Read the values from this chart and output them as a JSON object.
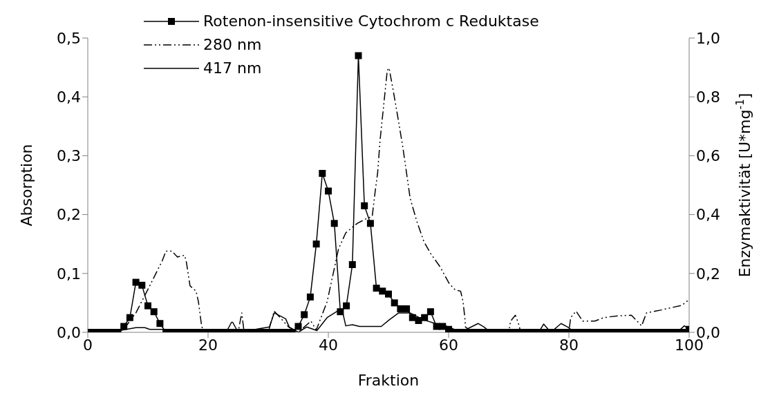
{
  "chart_data": {
    "type": "line",
    "xlabel": "Fraktion",
    "ylabel": "Absorption",
    "y2label": "Enzymaktivität [U*mg$^{-1}$]",
    "xlim": [
      0,
      100
    ],
    "xticks": [
      0,
      20,
      40,
      60,
      80,
      100
    ],
    "ylim": [
      0,
      0.5
    ],
    "yticks": [
      {
        "value": 0,
        "label": "0,0"
      },
      {
        "value": 0.1,
        "label": "0,1"
      },
      {
        "value": 0.2,
        "label": "0,2"
      },
      {
        "value": 0.3,
        "label": "0,3"
      },
      {
        "value": 0.4,
        "label": "0,4"
      },
      {
        "value": 0.5,
        "label": "0,5"
      }
    ],
    "y2lim": [
      0,
      1
    ],
    "y2ticks": [
      {
        "value": 0,
        "label": "0,0"
      },
      {
        "value": 0.2,
        "label": "0,2"
      },
      {
        "value": 0.4,
        "label": "0,4"
      },
      {
        "value": 0.6,
        "label": "0,6"
      },
      {
        "value": 0.8,
        "label": "0,8"
      },
      {
        "value": 1,
        "label": "1,0"
      }
    ],
    "legend": "top left",
    "grid": false,
    "series": [
      {
        "name": "Rotenon-insensitive Cytochrom c Reduktase",
        "color": "#000000",
        "axis": "y2",
        "marker": "square",
        "line_style": "solid",
        "x": [
          0,
          1,
          2,
          3,
          4,
          5,
          6,
          7,
          8,
          9,
          10,
          11,
          12,
          13,
          14,
          15,
          16,
          17,
          18,
          19,
          20,
          21,
          22,
          23,
          24,
          25,
          26,
          27,
          28,
          29,
          30,
          31,
          32,
          33,
          34,
          35,
          36,
          37,
          38,
          39,
          40,
          41,
          42,
          43,
          44,
          45,
          46,
          47,
          48,
          49,
          50,
          51,
          52,
          53,
          54,
          55,
          56,
          57,
          58,
          59,
          60,
          61,
          62,
          63,
          64,
          65,
          66,
          67,
          68,
          69,
          70,
          71,
          72,
          73,
          74,
          75,
          76,
          77,
          78,
          79,
          80,
          81,
          82,
          83,
          84,
          85,
          86,
          87,
          88,
          89,
          90,
          91,
          92,
          93,
          94,
          95,
          96,
          97,
          98,
          99,
          100
        ],
        "values": [
          0,
          0,
          0,
          0,
          0,
          0,
          0.02,
          0.05,
          0.17,
          0.16,
          0.09,
          0.07,
          0.03,
          0,
          0,
          0,
          0,
          0,
          0,
          0,
          0,
          0,
          0,
          0,
          0,
          0,
          0,
          0,
          0,
          0,
          0,
          0,
          0,
          0,
          0,
          0.02,
          0.06,
          0.12,
          0.3,
          0.54,
          0.48,
          0.37,
          0.07,
          0.09,
          0.23,
          0.94,
          0.43,
          0.37,
          0.15,
          0.14,
          0.13,
          0.1,
          0.08,
          0.08,
          0.05,
          0.04,
          0.05,
          0.07,
          0.02,
          0.02,
          0.01,
          0,
          0,
          0,
          0,
          0,
          0,
          0,
          0,
          0,
          0,
          0,
          0,
          0,
          0,
          0,
          0,
          0,
          0,
          0,
          0,
          0,
          0,
          0,
          0,
          0,
          0,
          0,
          0,
          0,
          0,
          0,
          0,
          0,
          0,
          0,
          0,
          0,
          0,
          0,
          0.01
        ]
      },
      {
        "name": "280 nm",
        "color": "#000000",
        "marker": "none",
        "line_style": "dashed",
        "x": [
          0,
          1,
          2,
          3,
          4,
          5.9,
          8,
          10.3,
          12.4,
          13,
          14,
          14.9,
          16.1,
          16.4,
          17,
          18,
          18.4,
          18.9,
          19.1,
          20,
          25,
          25.6,
          26,
          30,
          31,
          33.4,
          35,
          37.1,
          38,
          39.8,
          41.7,
          42.9,
          44.8,
          46.3,
          47.3,
          47.8,
          48.2,
          48.6,
          49.2,
          49.8,
          50.1,
          50.7,
          51.5,
          52.4,
          53.6,
          54.7,
          55.9,
          57,
          58.6,
          60.1,
          61.1,
          62,
          62.4,
          62.7,
          62.8,
          64,
          70,
          70.3,
          71.1,
          71.6,
          72,
          80,
          80.3,
          81.2,
          82.3,
          84.3,
          85.8,
          88.1,
          90.4,
          92.1,
          92.9,
          95.4,
          98.8,
          99.8
        ],
        "values": [
          0,
          0.005,
          0.005,
          0.005,
          0,
          0.004,
          0.033,
          0.079,
          0.122,
          0.138,
          0.138,
          0.128,
          0.131,
          0.119,
          0.079,
          0.07,
          0.052,
          0.013,
          0.005,
          0,
          0,
          0.033,
          0,
          0,
          0.036,
          0.009,
          0,
          0.019,
          0.004,
          0.052,
          0.142,
          0.169,
          0.185,
          0.193,
          0.197,
          0.24,
          0.271,
          0.326,
          0.385,
          0.445,
          0.449,
          0.416,
          0.369,
          0.314,
          0.228,
          0.189,
          0.154,
          0.134,
          0.111,
          0.083,
          0.072,
          0.07,
          0.052,
          0.025,
          0.009,
          0,
          0,
          0.019,
          0.029,
          0.016,
          0,
          0,
          0.025,
          0.036,
          0.019,
          0.019,
          0.025,
          0.028,
          0.029,
          0.011,
          0.033,
          0.038,
          0.046,
          0.054
        ]
      },
      {
        "name": "417 nm",
        "color": "#000000",
        "marker": "none",
        "line_style": "solid",
        "x": [
          0,
          5.9,
          8,
          9.5,
          10.3,
          12.6,
          13,
          23,
          23.9,
          24.1,
          25,
          30.2,
          31,
          32.9,
          33.5,
          35,
          36.4,
          38.1,
          39.8,
          41.5,
          42.3,
          42.9,
          44,
          45.2,
          48.8,
          50.1,
          51.7,
          53.6,
          55.9,
          57.8,
          60.1,
          62,
          64.9,
          65.9,
          67,
          75,
          75.8,
          77,
          78.7,
          79.8,
          81,
          98,
          99.2,
          100
        ],
        "values": [
          0,
          0.004,
          0.008,
          0.008,
          0.005,
          0.005,
          0,
          0,
          0.017,
          0.017,
          0,
          0.009,
          0.033,
          0.023,
          0.009,
          0,
          0.009,
          0.003,
          0.025,
          0.036,
          0.038,
          0.011,
          0.013,
          0.01,
          0.01,
          0.021,
          0.033,
          0.033,
          0.021,
          0.015,
          0.009,
          0,
          0.015,
          0.009,
          0,
          0,
          0.014,
          0,
          0.015,
          0.009,
          0,
          0,
          0.011,
          0.005
        ]
      }
    ]
  }
}
